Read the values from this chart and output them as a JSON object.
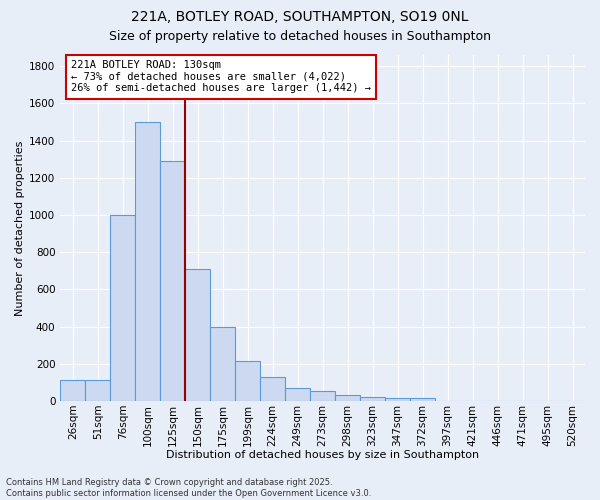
{
  "title1": "221A, BOTLEY ROAD, SOUTHAMPTON, SO19 0NL",
  "title2": "Size of property relative to detached houses in Southampton",
  "xlabel": "Distribution of detached houses by size in Southampton",
  "ylabel": "Number of detached properties",
  "categories": [
    "26sqm",
    "51sqm",
    "76sqm",
    "100sqm",
    "125sqm",
    "150sqm",
    "175sqm",
    "199sqm",
    "224sqm",
    "249sqm",
    "273sqm",
    "298sqm",
    "323sqm",
    "347sqm",
    "372sqm",
    "397sqm",
    "421sqm",
    "446sqm",
    "471sqm",
    "495sqm",
    "520sqm"
  ],
  "values": [
    110,
    110,
    1000,
    1500,
    1290,
    710,
    400,
    215,
    130,
    70,
    55,
    30,
    20,
    15,
    18,
    0,
    0,
    0,
    0,
    0,
    0
  ],
  "bar_color": "#ccd9f0",
  "bar_edge_color": "#5b9bd5",
  "background_color": "#e8eef8",
  "grid_color": "#ffffff",
  "red_line_x": 4.5,
  "annotation_line1": "221A BOTLEY ROAD: 130sqm",
  "annotation_line2": "← 73% of detached houses are smaller (4,022)",
  "annotation_line3": "26% of semi-detached houses are larger (1,442) →",
  "annotation_box_color": "#ffffff",
  "annotation_box_edge_color": "#cc0000",
  "footer_text": "Contains HM Land Registry data © Crown copyright and database right 2025.\nContains public sector information licensed under the Open Government Licence v3.0.",
  "ylim": [
    0,
    1860
  ],
  "yticks": [
    0,
    200,
    400,
    600,
    800,
    1000,
    1200,
    1400,
    1600,
    1800
  ],
  "title_fontsize": 10,
  "subtitle_fontsize": 9,
  "axis_label_fontsize": 8,
  "tick_fontsize": 7.5,
  "annotation_fontsize": 7.5,
  "footer_fontsize": 6
}
